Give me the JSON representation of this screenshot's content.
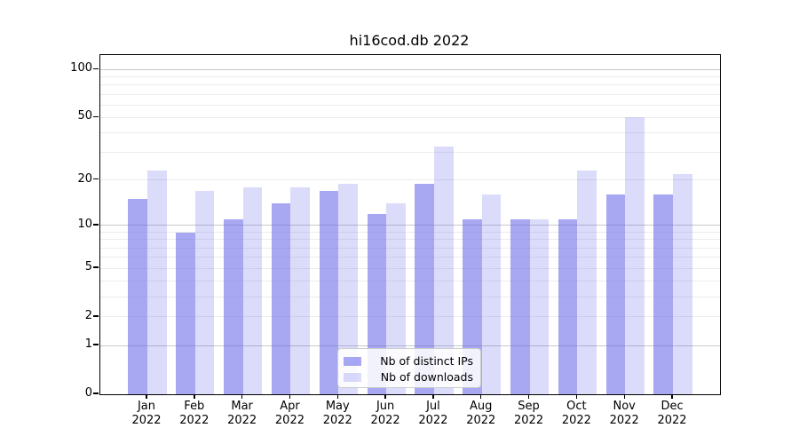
{
  "title": "hi16cod.db 2022",
  "chart_data": {
    "type": "bar",
    "title": "hi16cod.db 2022",
    "categories": [
      "Jan 2022",
      "Feb 2022",
      "Mar 2022",
      "Apr 2022",
      "May 2022",
      "Jun 2022",
      "Jul 2022",
      "Aug 2022",
      "Sep 2022",
      "Oct 2022",
      "Nov 2022",
      "Dec 2022"
    ],
    "series": [
      {
        "name": "Nb of distinct IPs",
        "color": "rgba(100,100,232,0.56)",
        "values": [
          15,
          9,
          11,
          14,
          17,
          12,
          19,
          11,
          11,
          11,
          16,
          16
        ]
      },
      {
        "name": "Nb of downloads",
        "color": "rgba(100,100,232,0.23)",
        "values": [
          23,
          17,
          18,
          18,
          19,
          14,
          33,
          16,
          11,
          23,
          50,
          22
        ]
      }
    ],
    "xlabel": "",
    "ylabel": "",
    "yscale": "log10(value+1)",
    "ylim": [
      0,
      123
    ],
    "yticks": [
      0,
      1,
      2,
      5,
      10,
      20,
      50,
      100
    ],
    "minor_yticks": [
      3,
      4,
      6,
      7,
      8,
      9,
      30,
      40,
      60,
      70,
      80,
      90
    ],
    "major_gridline_values": [
      1,
      10,
      100
    ],
    "grid": "on",
    "legend_position": "lower center"
  },
  "colors": {
    "minor_grid": "#ececec",
    "major_grid": "#c8c8c8",
    "axis": "#000000",
    "legend_border": "#cccccc"
  }
}
